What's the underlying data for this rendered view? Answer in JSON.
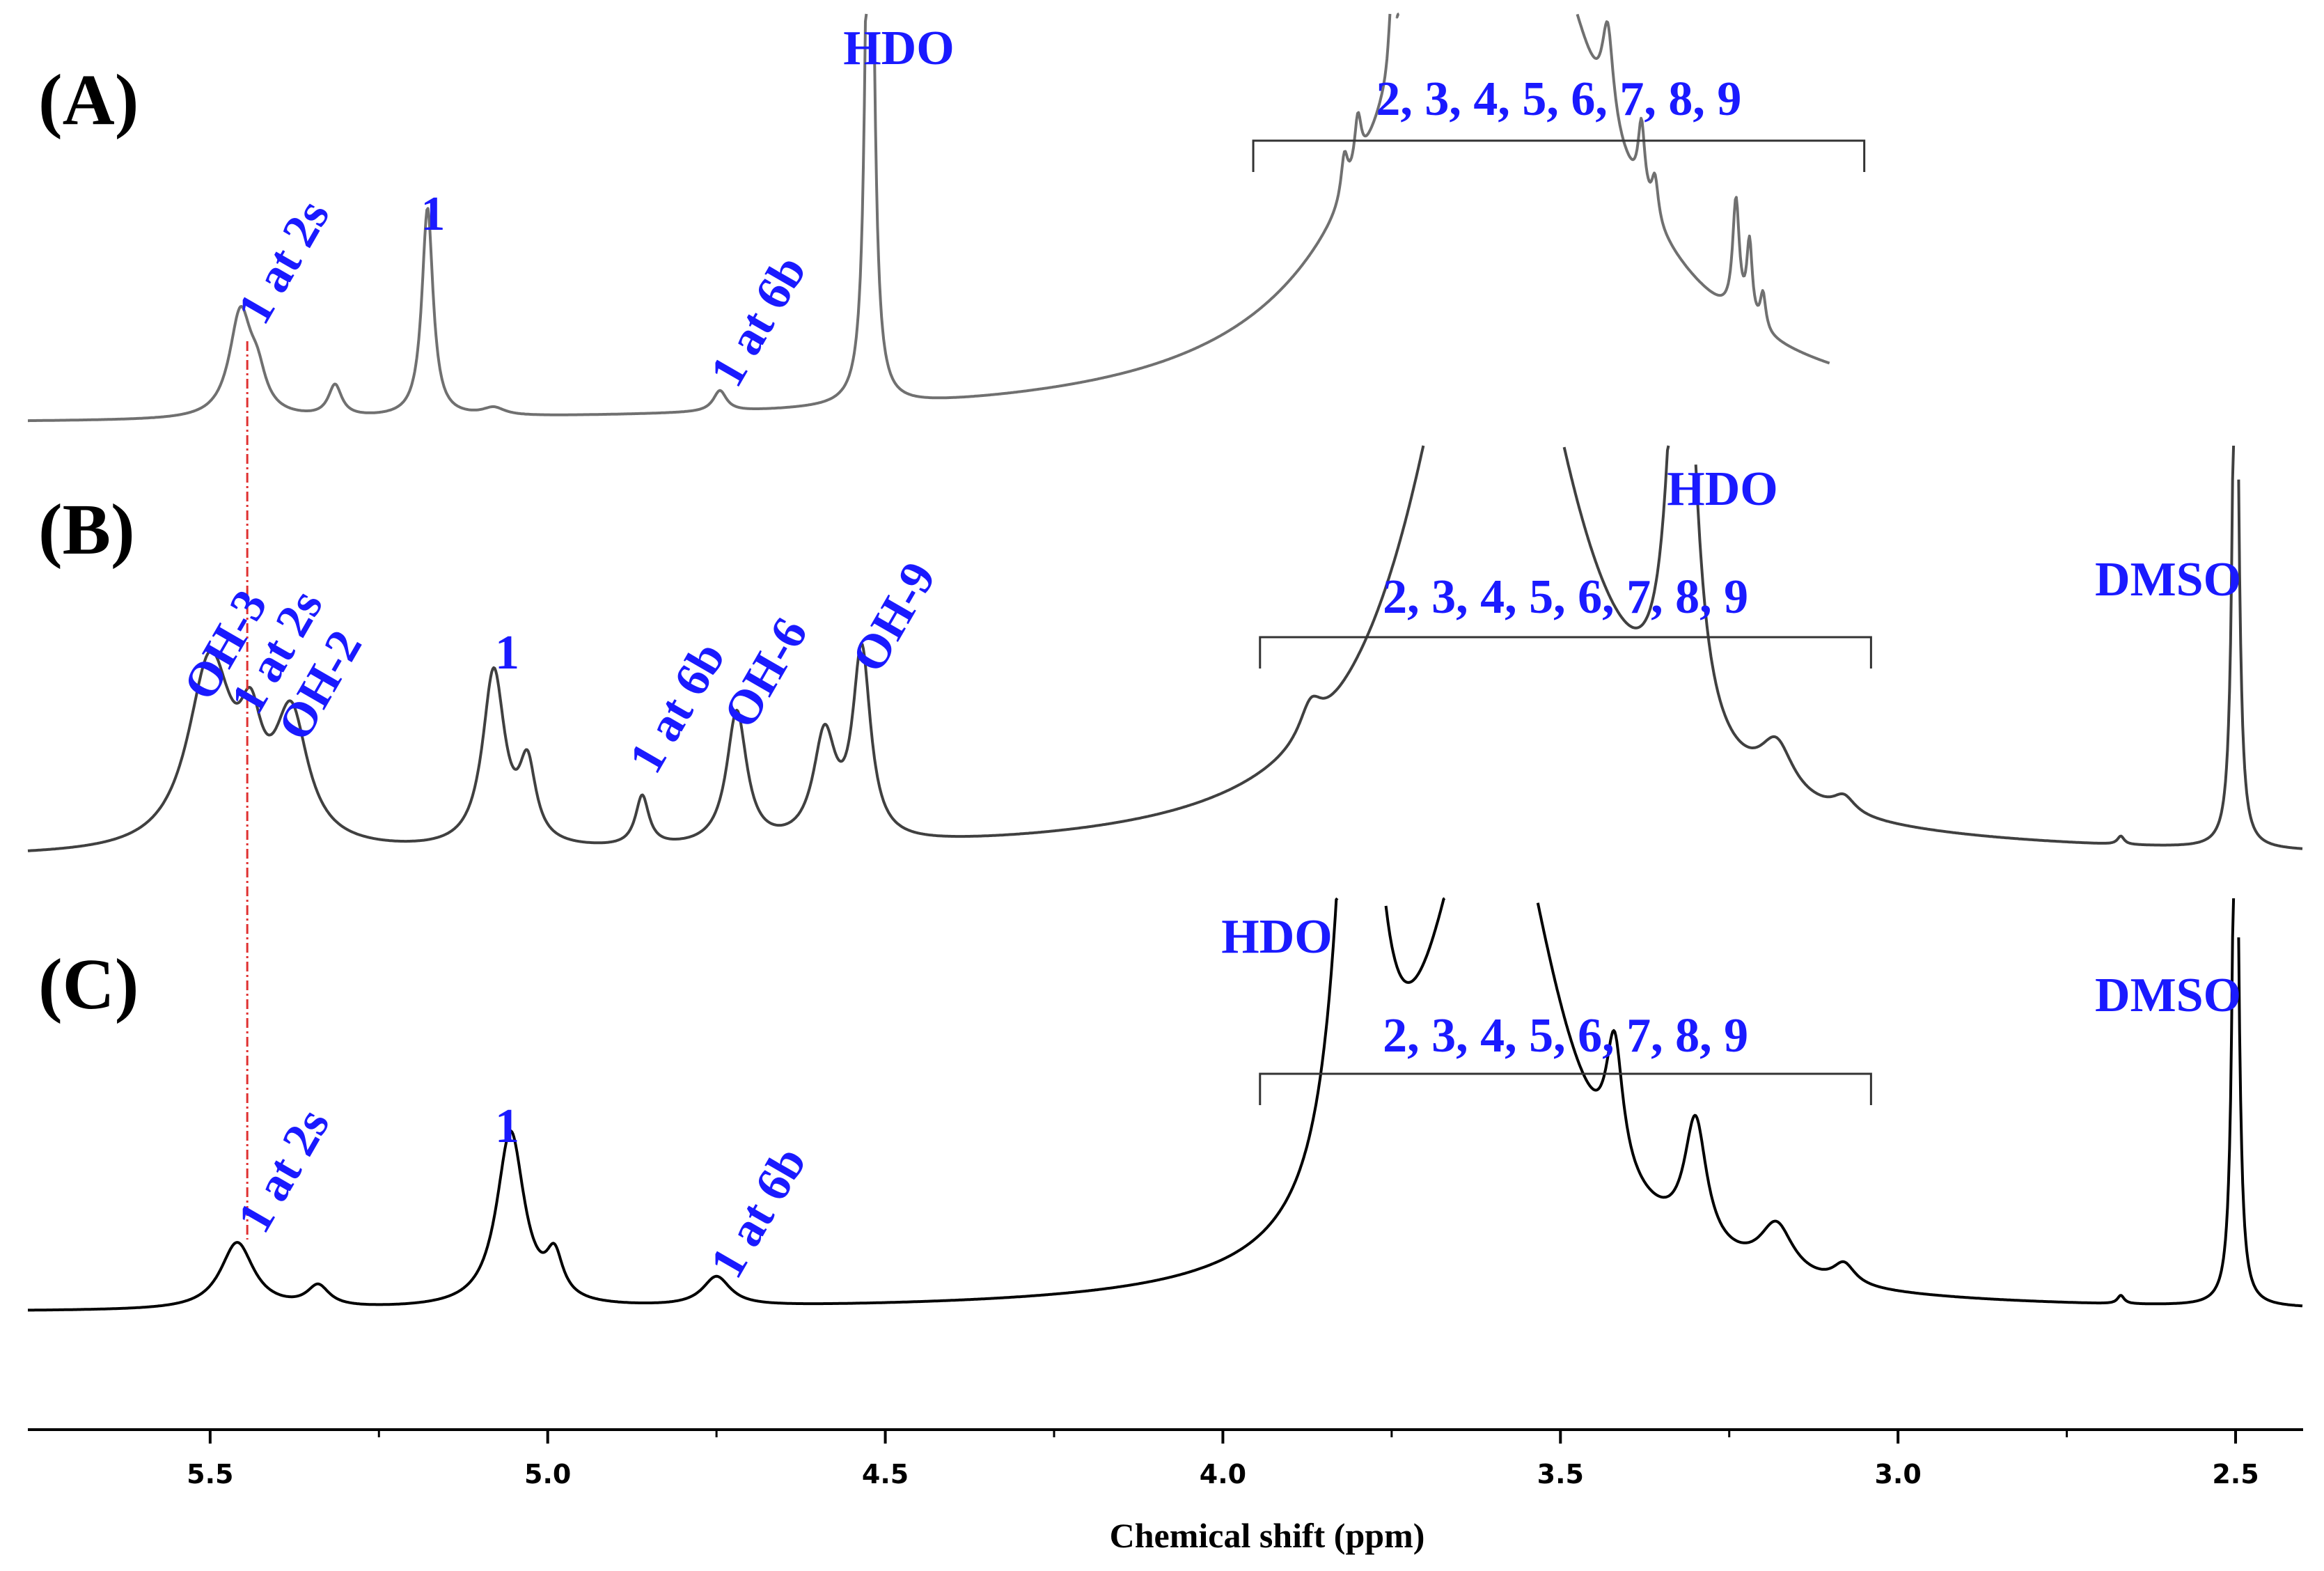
{
  "chart_data": {
    "type": "line",
    "title": "",
    "xlabel": "Chemical shift (ppm)",
    "ylabel": "",
    "xlim": [
      5.77,
      2.4
    ],
    "x_reversed": true,
    "ticks": [
      5.5,
      5.0,
      4.5,
      4.0,
      3.5,
      3.0,
      2.5
    ],
    "tick_labels": [
      "5.5",
      "5.0",
      "4.5",
      "4.0",
      "3.5",
      "3.0",
      "2.5"
    ],
    "grid": false,
    "colors": {
      "annotation": "#1a1aff",
      "spectrum_A": "#707070",
      "spectrum_B": "#404040",
      "spectrum_C": "#000000",
      "ref_line": "#e03030"
    },
    "reference_line_ppm": 5.445,
    "series": [
      {
        "name": "(A)",
        "label": "(A)",
        "baseline_ppm_range": [
          5.77,
          3.1
        ],
        "clip_top": true,
        "peaks": [
          {
            "ppm": 5.455,
            "h": 0.2,
            "w": 0.02
          },
          {
            "ppm": 5.43,
            "h": 0.06,
            "w": 0.015
          },
          {
            "ppm": 5.315,
            "h": 0.06,
            "w": 0.012
          },
          {
            "ppm": 5.178,
            "h": 0.4,
            "w": 0.01
          },
          {
            "ppm": 5.08,
            "h": 0.015,
            "w": 0.02
          },
          {
            "ppm": 4.745,
            "h": 0.04,
            "w": 0.012
          },
          {
            "ppm": 4.523,
            "h": 1.6,
            "w": 0.006
          },
          {
            "ppm": 3.6,
            "h": 1.25,
            "w": 0.16
          },
          {
            "ppm": 3.73,
            "h": 0.22,
            "w": 0.005
          },
          {
            "ppm": 3.71,
            "h": 0.2,
            "w": 0.005
          },
          {
            "ppm": 3.75,
            "h": 0.15,
            "w": 0.005
          },
          {
            "ppm": 3.8,
            "h": 0.1,
            "w": 0.006
          },
          {
            "ppm": 3.82,
            "h": 0.08,
            "w": 0.006
          },
          {
            "ppm": 3.43,
            "h": 0.18,
            "w": 0.01
          },
          {
            "ppm": 3.38,
            "h": 0.14,
            "w": 0.006
          },
          {
            "ppm": 3.36,
            "h": 0.08,
            "w": 0.006
          },
          {
            "ppm": 3.24,
            "h": 0.22,
            "w": 0.006
          },
          {
            "ppm": 3.22,
            "h": 0.15,
            "w": 0.005
          },
          {
            "ppm": 3.2,
            "h": 0.07,
            "w": 0.005
          }
        ]
      },
      {
        "name": "(B)",
        "label": "(B)",
        "baseline_ppm_range": [
          5.77,
          2.4
        ],
        "clip_top": true,
        "peaks": [
          {
            "ppm": 5.5,
            "h": 0.45,
            "w": 0.04
          },
          {
            "ppm": 5.44,
            "h": 0.2,
            "w": 0.02
          },
          {
            "ppm": 5.38,
            "h": 0.3,
            "w": 0.03
          },
          {
            "ppm": 5.08,
            "h": 0.42,
            "w": 0.02
          },
          {
            "ppm": 5.03,
            "h": 0.18,
            "w": 0.015
          },
          {
            "ppm": 4.86,
            "h": 0.12,
            "w": 0.012
          },
          {
            "ppm": 4.72,
            "h": 0.32,
            "w": 0.018
          },
          {
            "ppm": 4.59,
            "h": 0.25,
            "w": 0.02
          },
          {
            "ppm": 4.535,
            "h": 0.45,
            "w": 0.016
          },
          {
            "ppm": 3.6,
            "h": 1.6,
            "w": 0.13
          },
          {
            "ppm": 3.87,
            "h": 0.08,
            "w": 0.02
          },
          {
            "ppm": 3.32,
            "h": 1.4,
            "w": 0.02
          },
          {
            "ppm": 3.18,
            "h": 0.12,
            "w": 0.03
          },
          {
            "ppm": 3.08,
            "h": 0.04,
            "w": 0.02
          },
          {
            "ppm": 2.67,
            "h": 0.02,
            "w": 0.006
          },
          {
            "ppm": 2.5,
            "h": 1.6,
            "w": 0.005
          }
        ]
      },
      {
        "name": "(C)",
        "label": "(C)",
        "baseline_ppm_range": [
          5.77,
          2.4
        ],
        "clip_top": true,
        "peaks": [
          {
            "ppm": 5.46,
            "h": 0.16,
            "w": 0.03
          },
          {
            "ppm": 5.34,
            "h": 0.05,
            "w": 0.02
          },
          {
            "ppm": 5.055,
            "h": 0.42,
            "w": 0.025
          },
          {
            "ppm": 4.99,
            "h": 0.1,
            "w": 0.015
          },
          {
            "ppm": 4.75,
            "h": 0.07,
            "w": 0.025
          },
          {
            "ppm": 3.8,
            "h": 1.6,
            "w": 0.03
          },
          {
            "ppm": 3.6,
            "h": 1.3,
            "w": 0.11
          },
          {
            "ppm": 3.42,
            "h": 0.3,
            "w": 0.015
          },
          {
            "ppm": 3.3,
            "h": 0.3,
            "w": 0.02
          },
          {
            "ppm": 3.18,
            "h": 0.12,
            "w": 0.03
          },
          {
            "ppm": 3.08,
            "h": 0.05,
            "w": 0.02
          },
          {
            "ppm": 2.67,
            "h": 0.02,
            "w": 0.006
          },
          {
            "ppm": 2.5,
            "h": 1.6,
            "w": 0.005
          }
        ]
      }
    ],
    "brackets": [
      {
        "panel": "(A)",
        "from_ppm": 3.955,
        "to_ppm": 3.05,
        "label": "2, 3, 4, 5, 6, 7, 8, 9"
      },
      {
        "panel": "(B)",
        "from_ppm": 3.945,
        "to_ppm": 3.04,
        "label": "2, 3, 4, 5, 6, 7, 8, 9"
      },
      {
        "panel": "(C)",
        "from_ppm": 3.945,
        "to_ppm": 3.04,
        "label": "2, 3, 4, 5, 6, 7, 8, 9"
      }
    ],
    "annotations": [
      {
        "panel": "(A)",
        "text": "HDO",
        "ppm": 4.48,
        "rotate": false
      },
      {
        "panel": "(A)",
        "text": "1",
        "ppm": 5.17,
        "rotate": false
      },
      {
        "panel": "(A)",
        "text": "1 at 2s",
        "ppm": 5.42,
        "rotate": true
      },
      {
        "panel": "(A)",
        "text": "1 at 6b",
        "ppm": 4.72,
        "rotate": true
      },
      {
        "panel": "(B)",
        "text": "HDO",
        "ppm": 3.26,
        "rotate": false
      },
      {
        "panel": "(B)",
        "text": "DMSO",
        "ppm": 2.6,
        "rotate": false
      },
      {
        "panel": "(B)",
        "text": "OH-3",
        "ppm": 5.5,
        "rotate": true
      },
      {
        "panel": "(B)",
        "text": "1 at 2s",
        "ppm": 5.43,
        "rotate": true
      },
      {
        "panel": "(B)",
        "text": "OH-2",
        "ppm": 5.36,
        "rotate": true
      },
      {
        "panel": "(B)",
        "text": "1",
        "ppm": 5.06,
        "rotate": false
      },
      {
        "panel": "(B)",
        "text": "1 at 6b",
        "ppm": 4.84,
        "rotate": true
      },
      {
        "panel": "(B)",
        "text": "OH-6",
        "ppm": 4.7,
        "rotate": true
      },
      {
        "panel": "(B)",
        "text": "OH-9",
        "ppm": 4.51,
        "rotate": true
      },
      {
        "panel": "(C)",
        "text": "HDO",
        "ppm": 3.92,
        "rotate": false
      },
      {
        "panel": "(C)",
        "text": "DMSO",
        "ppm": 2.6,
        "rotate": false
      },
      {
        "panel": "(C)",
        "text": "1 at 2s",
        "ppm": 5.42,
        "rotate": true
      },
      {
        "panel": "(C)",
        "text": "1",
        "ppm": 5.06,
        "rotate": false
      },
      {
        "panel": "(C)",
        "text": "1 at 6b",
        "ppm": 4.72,
        "rotate": true
      }
    ]
  }
}
